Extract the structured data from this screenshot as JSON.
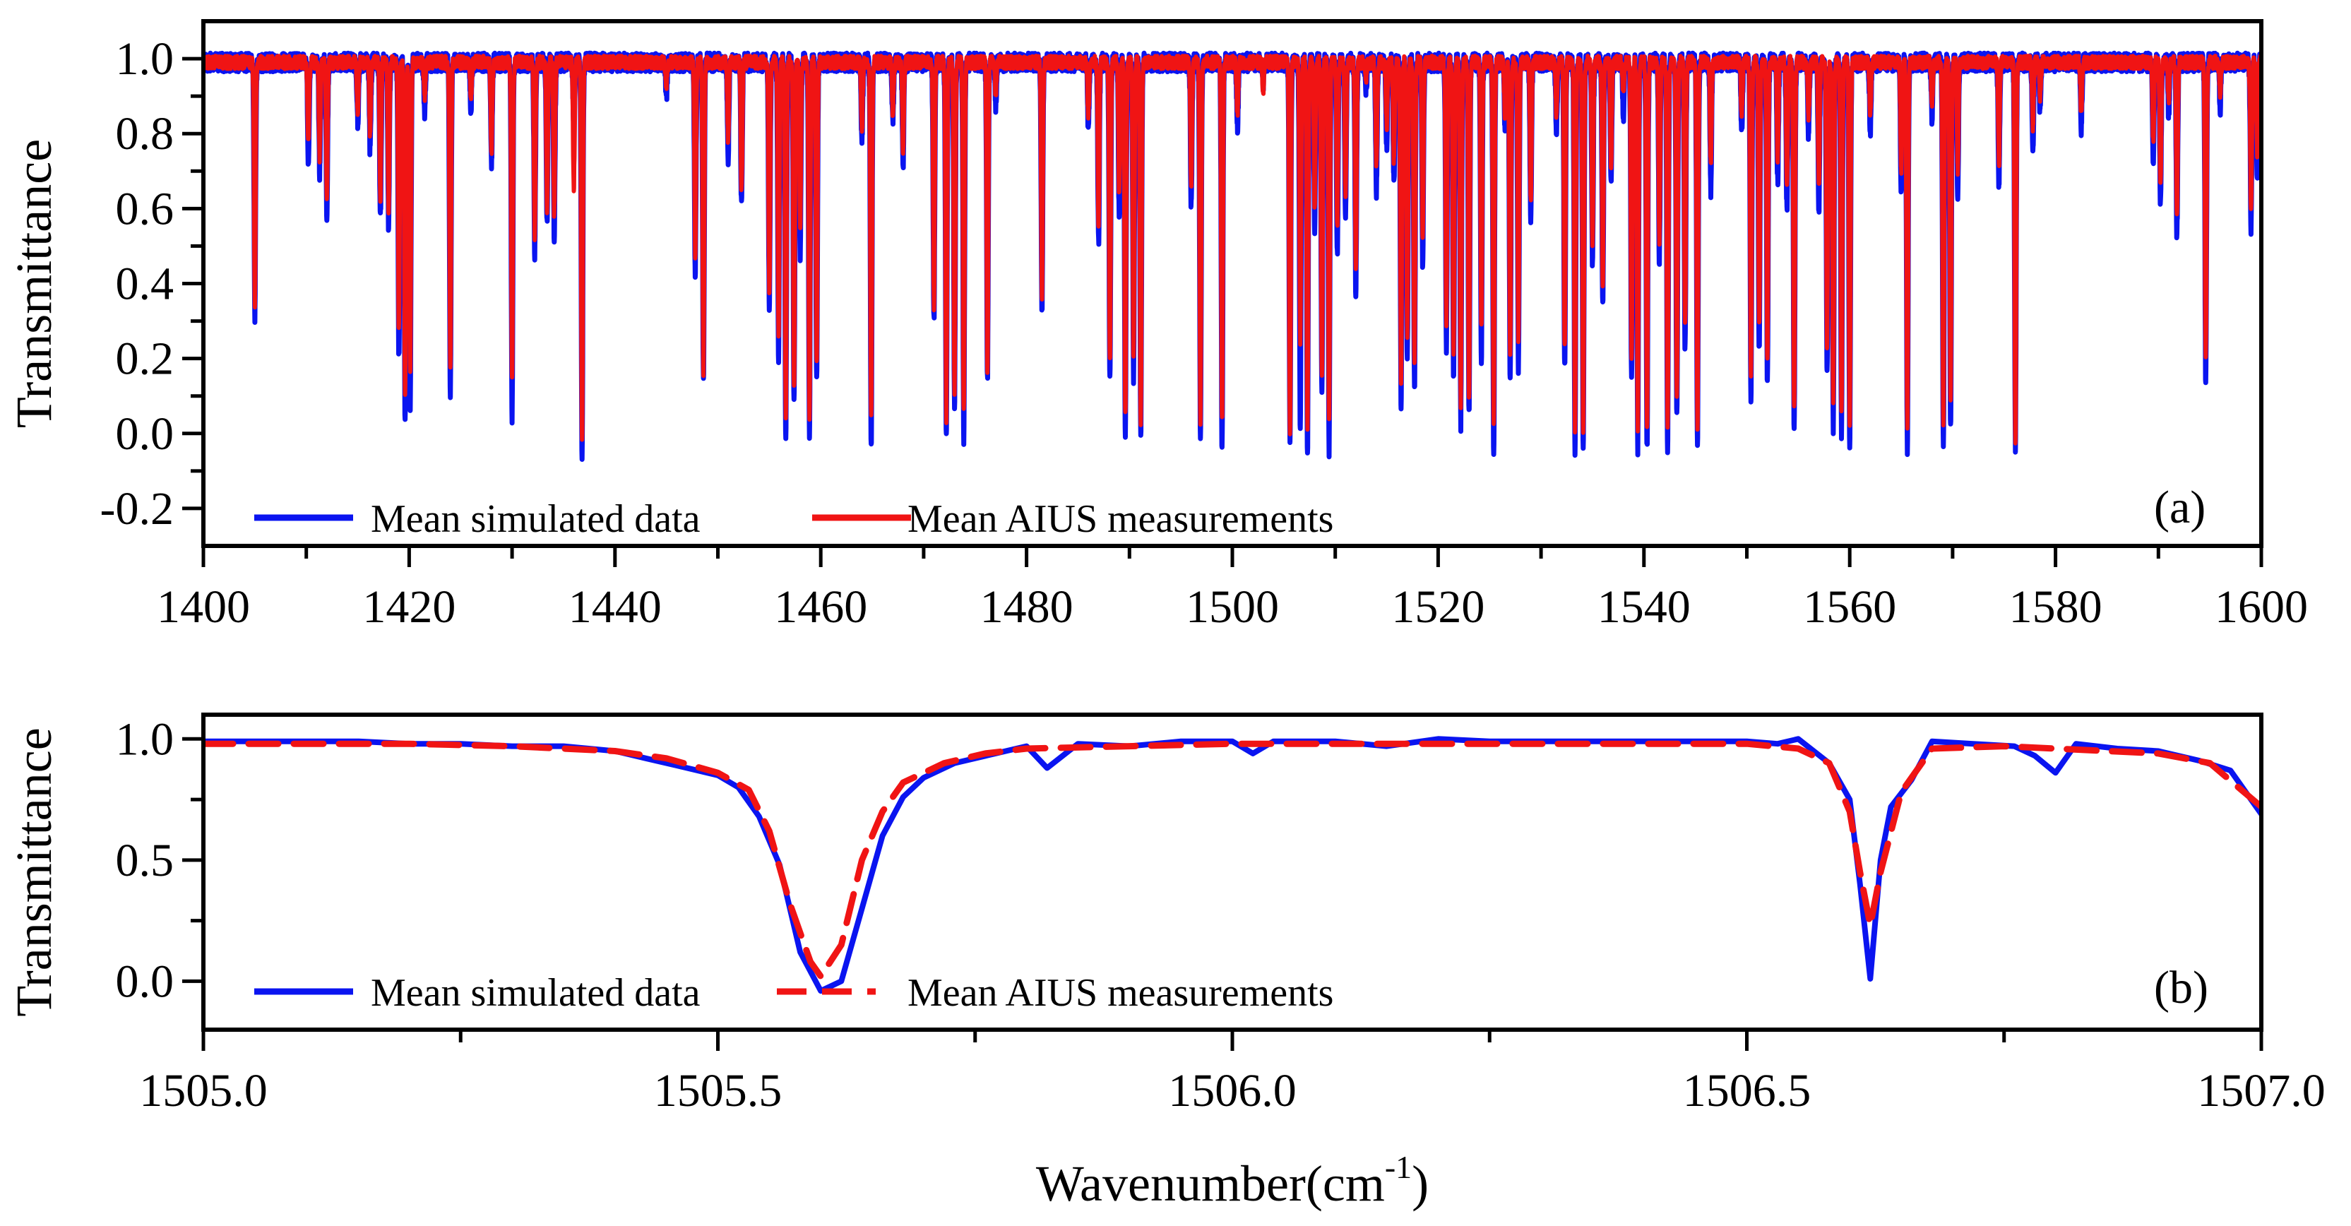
{
  "colors": {
    "simulated": "#0a14f0",
    "measured": "#f01414",
    "axis": "#000000"
  },
  "chart_data": [
    {
      "panel": "(a)",
      "type": "line",
      "xlabel": "",
      "ylabel": "Transmittance",
      "xlim": [
        1400,
        1600
      ],
      "ylim": [
        -0.3,
        1.1
      ],
      "xticks": [
        1400,
        1420,
        1440,
        1460,
        1480,
        1500,
        1520,
        1540,
        1560,
        1580,
        1600
      ],
      "xtick_labels": [
        "1400",
        "1420",
        "1440",
        "1460",
        "1480",
        "1500",
        "1520",
        "1540",
        "1560",
        "1580",
        "1600"
      ],
      "yticks": [
        -0.2,
        0.0,
        0.2,
        0.4,
        0.6,
        0.8,
        1.0
      ],
      "ytick_labels": [
        "-0.2",
        "0.0",
        "0.2",
        "0.4",
        "0.6",
        "0.8",
        "1.0"
      ],
      "grid": false,
      "legend_placement": "bottom-left",
      "baseline": 0.99,
      "absorption_lines": [
        [
          1405.0,
          0.31,
          0.34
        ],
        [
          1410.2,
          0.73,
          0.77
        ],
        [
          1411.3,
          0.7,
          0.74
        ],
        [
          1412.0,
          0.59,
          0.64
        ],
        [
          1415.0,
          0.82,
          0.85
        ],
        [
          1416.2,
          0.76,
          0.8
        ],
        [
          1417.2,
          0.57,
          0.63
        ],
        [
          1418.0,
          0.55,
          0.6
        ],
        [
          1419.0,
          0.2,
          0.27
        ],
        [
          1419.6,
          0.03,
          0.1
        ],
        [
          1420.1,
          0.07,
          0.16
        ],
        [
          1421.5,
          0.86,
          0.9
        ],
        [
          1424.0,
          0.11,
          0.18
        ],
        [
          1426.0,
          0.87,
          0.9
        ],
        [
          1428.0,
          0.72,
          0.75
        ],
        [
          1430.0,
          0.05,
          0.15
        ],
        [
          1432.2,
          0.48,
          0.52
        ],
        [
          1433.4,
          0.56,
          0.6
        ],
        [
          1434.1,
          0.53,
          0.58
        ],
        [
          1436.0,
          0.82,
          0.66
        ],
        [
          1436.8,
          -0.07,
          -0.02
        ],
        [
          1445.0,
          0.9,
          0.93
        ],
        [
          1447.8,
          0.43,
          0.48
        ],
        [
          1448.6,
          0.13,
          0.17
        ],
        [
          1451.0,
          0.73,
          0.78
        ],
        [
          1452.3,
          0.6,
          0.64
        ],
        [
          1455.0,
          0.33,
          0.37
        ],
        [
          1455.9,
          0.2,
          0.26
        ],
        [
          1456.6,
          -0.03,
          0.05
        ],
        [
          1457.4,
          0.07,
          0.12
        ],
        [
          1458.0,
          0.48,
          0.55
        ],
        [
          1458.9,
          -0.01,
          0.05
        ],
        [
          1459.6,
          0.14,
          0.18
        ],
        [
          1464.0,
          0.78,
          0.81
        ],
        [
          1464.9,
          -0.04,
          0.04
        ],
        [
          1467.0,
          0.83,
          0.86
        ],
        [
          1468.0,
          0.72,
          0.75
        ],
        [
          1471.0,
          0.3,
          0.34
        ],
        [
          1472.2,
          0.0,
          0.04
        ],
        [
          1473.0,
          0.08,
          0.12
        ],
        [
          1473.9,
          -0.01,
          0.05
        ],
        [
          1476.2,
          0.14,
          0.17
        ],
        [
          1477.0,
          0.88,
          0.91
        ],
        [
          1481.5,
          0.32,
          0.36
        ],
        [
          1486.0,
          0.81,
          0.85
        ],
        [
          1487.0,
          0.51,
          0.56
        ],
        [
          1488.1,
          0.15,
          0.19
        ],
        [
          1489.0,
          0.6,
          0.64
        ],
        [
          1489.6,
          -0.01,
          0.04
        ],
        [
          1490.4,
          0.15,
          0.2
        ],
        [
          1491.1,
          -0.01,
          0.03
        ],
        [
          1496.0,
          0.6,
          0.66
        ],
        [
          1496.9,
          0.0,
          0.04
        ],
        [
          1499.0,
          -0.05,
          0.03
        ],
        [
          1500.5,
          0.82,
          0.86
        ],
        [
          1503.0,
          0.94,
          0.92
        ],
        [
          1505.6,
          -0.03,
          0.0
        ],
        [
          1506.6,
          0.01,
          0.25
        ],
        [
          1507.3,
          -0.05,
          0.02
        ],
        [
          1508.0,
          0.55,
          0.6
        ],
        [
          1508.7,
          0.1,
          0.16
        ],
        [
          1509.4,
          -0.05,
          0.03
        ],
        [
          1510.2,
          0.48,
          0.55
        ],
        [
          1511.0,
          0.58,
          0.64
        ],
        [
          1512.0,
          0.38,
          0.44
        ],
        [
          1513.0,
          0.92,
          0.95
        ],
        [
          1514.0,
          0.65,
          0.72
        ],
        [
          1515.0,
          0.77,
          0.82
        ],
        [
          1515.7,
          0.67,
          0.72
        ],
        [
          1516.4,
          0.07,
          0.14
        ],
        [
          1517.0,
          0.2,
          0.26
        ],
        [
          1517.7,
          0.12,
          0.18
        ],
        [
          1518.5,
          0.44,
          0.52
        ],
        [
          1520.8,
          0.23,
          0.3
        ],
        [
          1521.5,
          0.13,
          0.2
        ],
        [
          1522.2,
          0.03,
          0.08
        ],
        [
          1523.0,
          0.04,
          0.09
        ],
        [
          1524.2,
          0.2,
          0.28
        ],
        [
          1525.4,
          -0.07,
          0.03
        ],
        [
          1526.5,
          0.81,
          0.85
        ],
        [
          1527.0,
          0.15,
          0.22
        ],
        [
          1527.8,
          0.18,
          0.26
        ],
        [
          1529.0,
          0.56,
          0.62
        ],
        [
          1531.5,
          0.8,
          0.85
        ],
        [
          1532.3,
          0.17,
          0.23
        ],
        [
          1533.3,
          -0.06,
          0.02
        ],
        [
          1534.1,
          -0.05,
          0.01
        ],
        [
          1535.0,
          0.44,
          0.5
        ],
        [
          1536.0,
          0.34,
          0.4
        ],
        [
          1536.8,
          0.66,
          0.72
        ],
        [
          1538.0,
          0.85,
          0.9
        ],
        [
          1538.8,
          0.14,
          0.2
        ],
        [
          1539.4,
          -0.04,
          0.02
        ],
        [
          1540.3,
          -0.04,
          0.01
        ],
        [
          1541.5,
          0.46,
          0.52
        ],
        [
          1542.3,
          -0.03,
          0.02
        ],
        [
          1543.2,
          0.05,
          0.1
        ],
        [
          1544.0,
          0.22,
          0.28
        ],
        [
          1545.2,
          -0.05,
          0.02
        ],
        [
          1546.5,
          0.65,
          0.72
        ],
        [
          1549.5,
          0.8,
          0.85
        ],
        [
          1550.4,
          0.1,
          0.16
        ],
        [
          1551.2,
          0.23,
          0.3
        ],
        [
          1552.0,
          0.13,
          0.2
        ],
        [
          1553.0,
          0.67,
          0.73
        ],
        [
          1553.9,
          0.6,
          0.66
        ],
        [
          1554.6,
          0.01,
          0.06
        ],
        [
          1556.0,
          0.8,
          0.85
        ],
        [
          1557.0,
          0.6,
          0.66
        ],
        [
          1557.8,
          0.16,
          0.23
        ],
        [
          1558.4,
          0.02,
          0.08
        ],
        [
          1559.2,
          0.0,
          0.06
        ],
        [
          1560.0,
          -0.04,
          0.02
        ],
        [
          1562.0,
          0.8,
          0.85
        ],
        [
          1565.0,
          0.64,
          0.7
        ],
        [
          1565.6,
          -0.04,
          0.02
        ],
        [
          1568.0,
          0.84,
          0.88
        ],
        [
          1569.1,
          -0.04,
          0.03
        ],
        [
          1569.8,
          0.01,
          0.08
        ],
        [
          1570.5,
          0.64,
          0.7
        ],
        [
          1574.5,
          0.67,
          0.72
        ],
        [
          1576.1,
          -0.03,
          -0.02
        ],
        [
          1577.8,
          0.76,
          0.82
        ],
        [
          1578.5,
          0.86,
          0.9
        ],
        [
          1582.5,
          0.81,
          0.86
        ],
        [
          1589.5,
          0.73,
          0.78
        ],
        [
          1590.2,
          0.62,
          0.67
        ],
        [
          1591.0,
          0.85,
          0.89
        ],
        [
          1591.8,
          0.53,
          0.58
        ],
        [
          1594.6,
          0.14,
          0.2
        ],
        [
          1596.0,
          0.87,
          0.91
        ],
        [
          1599.0,
          0.55,
          0.6
        ],
        [
          1599.6,
          0.69,
          0.75
        ]
      ],
      "series": [
        {
          "name": "Mean simulated data",
          "color": "#0a14f0",
          "style": "solid"
        },
        {
          "name": "Mean AIUS measurements",
          "color": "#f01414",
          "style": "solid"
        }
      ]
    },
    {
      "panel": "(b)",
      "type": "line",
      "xlabel": "Wavenumber(cm",
      "xlabel_sup": "-1",
      "xlabel_end": ")",
      "ylabel": "Transmittance",
      "xlim": [
        1505.0,
        1507.0
      ],
      "ylim": [
        -0.2,
        1.1
      ],
      "xticks": [
        1505.0,
        1505.5,
        1506.0,
        1506.5,
        1507.0
      ],
      "xtick_labels": [
        "1505.0",
        "1505.5",
        "1506.0",
        "1506.5",
        "1507.0"
      ],
      "xminor_ticks": [
        1505.25,
        1505.75,
        1506.25,
        1506.75
      ],
      "yticks": [
        0.0,
        0.5,
        1.0
      ],
      "ytick_labels": [
        "0.0",
        "0.5",
        "1.0"
      ],
      "grid": false,
      "legend_placement": "bottom-left",
      "series": [
        {
          "name": "Mean simulated data",
          "color": "#0a14f0",
          "style": "solid",
          "x": [
            1505.0,
            1505.05,
            1505.1,
            1505.15,
            1505.2,
            1505.25,
            1505.3,
            1505.35,
            1505.4,
            1505.43,
            1505.46,
            1505.5,
            1505.52,
            1505.54,
            1505.56,
            1505.58,
            1505.6,
            1505.62,
            1505.64,
            1505.66,
            1505.68,
            1505.7,
            1505.73,
            1505.76,
            1505.8,
            1505.82,
            1505.85,
            1505.9,
            1505.95,
            1505.98,
            1506.0,
            1506.02,
            1506.04,
            1506.1,
            1506.15,
            1506.2,
            1506.25,
            1506.3,
            1506.4,
            1506.5,
            1506.53,
            1506.55,
            1506.58,
            1506.6,
            1506.61,
            1506.62,
            1506.63,
            1506.64,
            1506.66,
            1506.68,
            1506.72,
            1506.76,
            1506.78,
            1506.8,
            1506.82,
            1506.86,
            1506.9,
            1506.94,
            1506.97,
            1507.0
          ],
          "y": [
            0.99,
            0.99,
            0.99,
            0.99,
            0.98,
            0.98,
            0.97,
            0.97,
            0.95,
            0.92,
            0.89,
            0.85,
            0.8,
            0.68,
            0.48,
            0.12,
            -0.04,
            0.0,
            0.3,
            0.6,
            0.76,
            0.84,
            0.9,
            0.93,
            0.97,
            0.88,
            0.98,
            0.97,
            0.99,
            0.99,
            0.99,
            0.94,
            0.99,
            0.99,
            0.97,
            1.0,
            0.99,
            0.99,
            0.99,
            0.99,
            0.98,
            1.0,
            0.9,
            0.75,
            0.4,
            0.01,
            0.5,
            0.72,
            0.83,
            0.99,
            0.98,
            0.97,
            0.93,
            0.86,
            0.98,
            0.96,
            0.95,
            0.91,
            0.87,
            0.69
          ]
        },
        {
          "name": "Mean AIUS measurements",
          "color": "#f01414",
          "style": "dashed",
          "x": [
            1505.0,
            1505.1,
            1505.2,
            1505.3,
            1505.4,
            1505.45,
            1505.5,
            1505.53,
            1505.55,
            1505.57,
            1505.59,
            1505.6,
            1505.62,
            1505.64,
            1505.66,
            1505.68,
            1505.72,
            1505.76,
            1505.8,
            1505.9,
            1506.0,
            1506.2,
            1506.4,
            1506.5,
            1506.55,
            1506.58,
            1506.6,
            1506.61,
            1506.62,
            1506.63,
            1506.65,
            1506.68,
            1506.75,
            1506.8,
            1506.9,
            1506.95,
            1507.0
          ],
          "y": [
            0.98,
            0.98,
            0.98,
            0.97,
            0.95,
            0.92,
            0.86,
            0.79,
            0.62,
            0.32,
            0.08,
            0.02,
            0.15,
            0.5,
            0.7,
            0.82,
            0.9,
            0.94,
            0.96,
            0.97,
            0.98,
            0.98,
            0.98,
            0.98,
            0.96,
            0.9,
            0.7,
            0.45,
            0.23,
            0.45,
            0.78,
            0.96,
            0.97,
            0.96,
            0.94,
            0.9,
            0.72
          ]
        }
      ]
    }
  ]
}
